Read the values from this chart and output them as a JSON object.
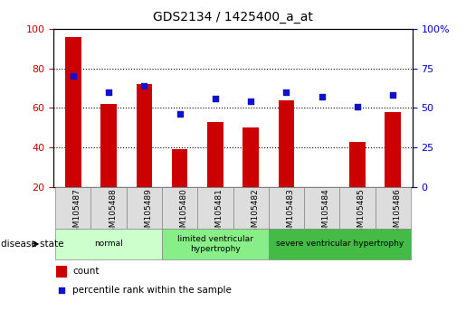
{
  "title": "GDS2134 / 1425400_a_at",
  "samples": [
    "GSM105487",
    "GSM105488",
    "GSM105489",
    "GSM105480",
    "GSM105481",
    "GSM105482",
    "GSM105483",
    "GSM105484",
    "GSM105485",
    "GSM105486"
  ],
  "counts": [
    96,
    62,
    72,
    39,
    53,
    50,
    64,
    20,
    43,
    58
  ],
  "percentiles": [
    70,
    60,
    64,
    46,
    56,
    54,
    60,
    57,
    51,
    58
  ],
  "ymin": 20,
  "ymax": 100,
  "y_ticks_left": [
    20,
    40,
    60,
    80,
    100
  ],
  "y_ticks_right_vals": [
    0,
    25,
    50,
    75,
    100
  ],
  "y_ticks_right_labels": [
    "0",
    "25",
    "50",
    "75",
    "100%"
  ],
  "bar_color": "#cc0000",
  "dot_color": "#1111cc",
  "groups": [
    {
      "label": "normal",
      "start": 0,
      "end": 3,
      "color": "#ccffcc"
    },
    {
      "label": "limited ventricular\nhypertrophy",
      "start": 3,
      "end": 6,
      "color": "#88ee88"
    },
    {
      "label": "severe ventricular hypertrophy",
      "start": 6,
      "end": 10,
      "color": "#44bb44"
    }
  ],
  "disease_state_label": "disease state",
  "legend_count_label": "count",
  "legend_percentile_label": "percentile rank within the sample",
  "bar_width": 0.45,
  "bg_color": "#ffffff",
  "axis_left_color": "#cc0000",
  "axis_right_color": "#0000cc",
  "cell_color": "#dddddd",
  "cell_border_color": "#888888"
}
